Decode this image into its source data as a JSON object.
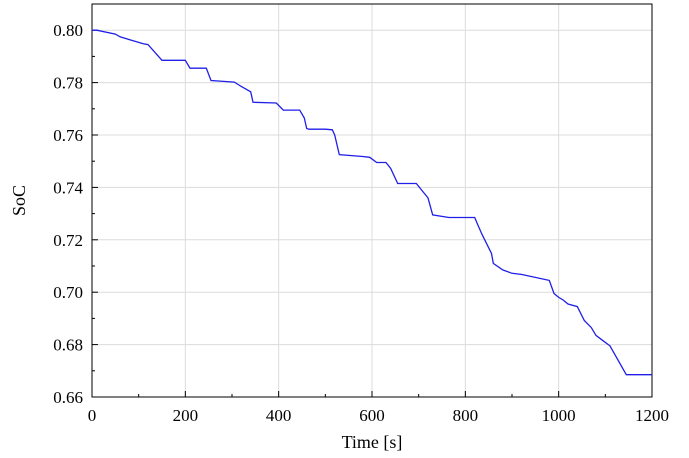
{
  "chart_data": {
    "type": "line",
    "xlabel": "Time [s]",
    "ylabel": "SoC",
    "xlim": [
      0,
      1200
    ],
    "ylim": [
      0.66,
      0.81
    ],
    "xticks": [
      "0",
      "200",
      "400",
      "600",
      "800",
      "1000",
      "1200"
    ],
    "yticks": [
      "0.66",
      "0.68",
      "0.70",
      "0.72",
      "0.74",
      "0.76",
      "0.78",
      "0.80"
    ],
    "grid": true,
    "series": [
      {
        "color": "#1f1fe8",
        "x": [
          0,
          10,
          50,
          60,
          110,
          120,
          140,
          150,
          200,
          210,
          245,
          255,
          305,
          320,
          340,
          345,
          395,
          410,
          445,
          455,
          460,
          465,
          500,
          515,
          520,
          530,
          580,
          595,
          610,
          630,
          640,
          655,
          695,
          720,
          730,
          765,
          820,
          826,
          836,
          856,
          860,
          880,
          900,
          920,
          980,
          990,
          1000,
          1010,
          1020,
          1040,
          1055,
          1070,
          1080,
          1095,
          1110,
          1145,
          1150,
          1200
        ],
        "y": [
          0.8,
          0.8,
          0.7985,
          0.7975,
          0.7948,
          0.7945,
          0.7905,
          0.7885,
          0.7885,
          0.7855,
          0.7855,
          0.7808,
          0.7802,
          0.7785,
          0.7765,
          0.7725,
          0.7722,
          0.7695,
          0.7695,
          0.7665,
          0.7625,
          0.7622,
          0.7622,
          0.762,
          0.76,
          0.7525,
          0.7518,
          0.7515,
          0.7495,
          0.7495,
          0.7472,
          0.7415,
          0.7415,
          0.736,
          0.7295,
          0.7285,
          0.7285,
          0.726,
          0.722,
          0.7148,
          0.711,
          0.7085,
          0.7072,
          0.7068,
          0.7045,
          0.6995,
          0.698,
          0.697,
          0.6955,
          0.6945,
          0.6892,
          0.6865,
          0.6835,
          0.6815,
          0.6795,
          0.6685,
          0.6685,
          0.6685
        ]
      }
    ]
  }
}
